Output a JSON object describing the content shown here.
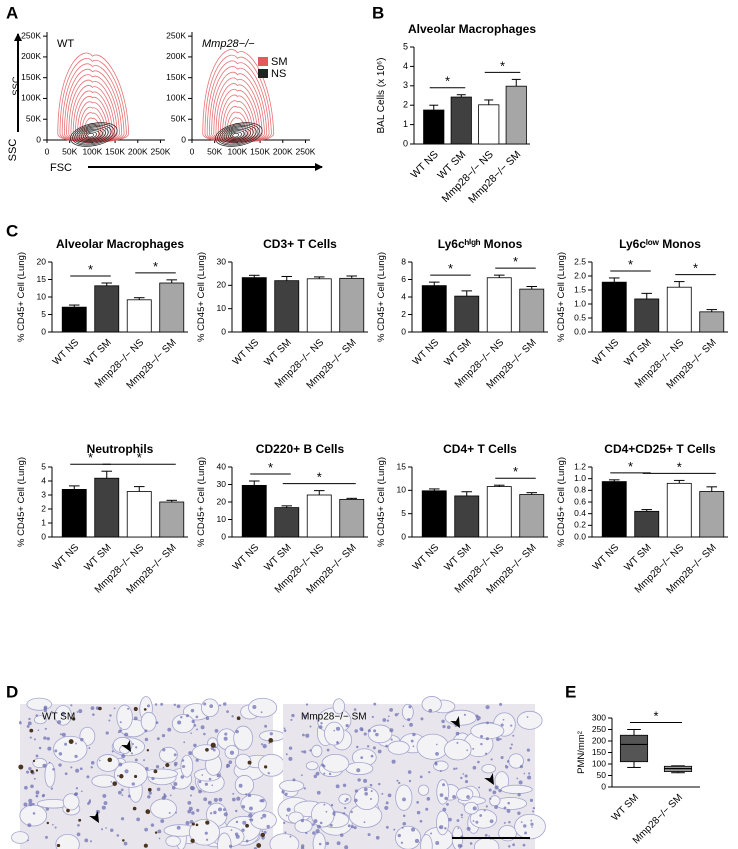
{
  "panel_labels": [
    "A",
    "B",
    "C",
    "D",
    "E"
  ],
  "micrographs": [
    {
      "label": "WT SM"
    },
    {
      "label": "Mmp28−/− SM"
    }
  ],
  "chart_data": [
    {
      "type": "contour",
      "title": "WT",
      "x_label": "FSC",
      "y_label": "SSC",
      "xlim": [
        0,
        260000
      ],
      "ylim": [
        0,
        260000
      ],
      "xticks": [
        0,
        {
          "value": 50000,
          "label": "50K"
        },
        {
          "value": 100000,
          "label": "100K"
        },
        {
          "value": 150000,
          "label": "150K"
        },
        {
          "value": 200000,
          "label": "200K"
        },
        {
          "value": 250000,
          "label": "250K"
        }
      ],
      "yticks": [
        0,
        {
          "value": 50000,
          "label": "50K"
        },
        {
          "value": 100000,
          "label": "100K"
        },
        {
          "value": 150000,
          "label": "150K"
        },
        {
          "value": 200000,
          "label": "200K"
        },
        {
          "value": 250000,
          "label": "250K"
        }
      ],
      "series": [
        {
          "color": "#e05a5e"
        },
        {
          "color": "#222222"
        }
      ]
    },
    {
      "type": "contour",
      "title": "Mmp28−/−",
      "xlim": [
        0,
        260000
      ],
      "ylim": [
        0,
        260000
      ],
      "xticks": [
        0,
        {
          "value": 50000,
          "label": "50K"
        },
        {
          "value": 100000,
          "label": "100K"
        },
        {
          "value": 150000,
          "label": "150K"
        },
        {
          "value": 200000,
          "label": "200K"
        },
        {
          "value": 250000,
          "label": "250K"
        }
      ],
      "yticks": [
        0,
        {
          "value": 50000,
          "label": "50K"
        },
        {
          "value": 100000,
          "label": "100K"
        },
        {
          "value": 150000,
          "label": "150K"
        },
        {
          "value": 200000,
          "label": "200K"
        },
        {
          "value": 250000,
          "label": "250K"
        }
      ],
      "series": [
        {
          "name": "SM",
          "color": "#e05a5e"
        },
        {
          "name": "NS",
          "color": "#222222"
        }
      ]
    },
    {
      "type": "bar",
      "title": "Alveolar Macrophages",
      "y_label": "BAL Cells (x 10⁶)",
      "categories": [
        "WT NS",
        "WT SM",
        "Mmp28−/− NS",
        "Mmp28−/− SM"
      ],
      "values": [
        1.75,
        2.42,
        2.02,
        2.98
      ],
      "errors": [
        0.25,
        0.12,
        0.25,
        0.35
      ],
      "colors": [
        "#000000",
        "#404040",
        "#ffffff",
        "#a6a6a6"
      ],
      "ylim": [
        0,
        5
      ],
      "yticks": [
        0,
        1,
        2,
        3,
        4,
        5
      ],
      "significance": [
        {
          "label": "*",
          "between": [
            "WT NS",
            "WT SM"
          ]
        },
        {
          "label": "*",
          "between": [
            "Mmp28−/− NS",
            "Mmp28−/− SM"
          ]
        }
      ]
    },
    {
      "type": "bar",
      "title": "Alveolar Macrophages",
      "y_label": "% CD45+ Cell (Lung)",
      "categories": [
        "WT NS",
        "WT SM",
        "Mmp28−/− NS",
        "Mmp28−/− SM"
      ],
      "values": [
        7.1,
        13.2,
        9.2,
        14.0
      ],
      "errors": [
        0.6,
        0.8,
        0.6,
        0.9
      ],
      "colors": [
        "#000000",
        "#404040",
        "#ffffff",
        "#a6a6a6"
      ],
      "ylim": [
        0,
        20
      ],
      "yticks": [
        0,
        5,
        10,
        15,
        20
      ],
      "significance": [
        {
          "label": "*",
          "between": [
            "WT NS",
            "WT SM"
          ]
        },
        {
          "label": "*",
          "between": [
            "Mmp28−/− NS",
            "Mmp28−/− SM"
          ]
        }
      ]
    },
    {
      "type": "bar",
      "title": "CD3+ T Cells",
      "y_label": "% CD45+ Cell (Lung)",
      "categories": [
        "WT NS",
        "WT SM",
        "Mmp28−/− NS",
        "Mmp28−/− SM"
      ],
      "values": [
        23.3,
        22.0,
        22.8,
        23.0
      ],
      "errors": [
        1.0,
        1.8,
        0.8,
        1.0
      ],
      "colors": [
        "#000000",
        "#404040",
        "#ffffff",
        "#a6a6a6"
      ],
      "ylim": [
        0,
        30
      ],
      "yticks": [
        0,
        10,
        20,
        30
      ],
      "significance": []
    },
    {
      "type": "bar",
      "title": "Ly6cʰⁱᵍʰ Monos",
      "y_label": "% CD45+ Cell (Lung)",
      "categories": [
        "WT NS",
        "WT SM",
        "Mmp28−/− NS",
        "Mmp28−/− SM"
      ],
      "values": [
        5.3,
        4.1,
        6.2,
        4.9
      ],
      "errors": [
        0.4,
        0.6,
        0.3,
        0.3
      ],
      "colors": [
        "#000000",
        "#404040",
        "#ffffff",
        "#a6a6a6"
      ],
      "ylim": [
        0,
        8
      ],
      "yticks": [
        0,
        2,
        4,
        6,
        8
      ],
      "significance": [
        {
          "label": "*",
          "between": [
            "WT NS",
            "WT SM"
          ]
        },
        {
          "label": "*",
          "between": [
            "Mmp28−/− NS",
            "Mmp28−/− SM"
          ]
        }
      ]
    },
    {
      "type": "bar",
      "title": "Ly6cˡᵒʷ Monos",
      "y_label": "% CD45+ Cell (Lung)",
      "categories": [
        "WT NS",
        "WT SM",
        "Mmp28−/− NS",
        "Mmp28−/− SM"
      ],
      "values": [
        1.78,
        1.18,
        1.6,
        0.72
      ],
      "errors": [
        0.15,
        0.2,
        0.2,
        0.08
      ],
      "colors": [
        "#000000",
        "#404040",
        "#ffffff",
        "#a6a6a6"
      ],
      "ylim": [
        0,
        2.5
      ],
      "yticks": [
        {
          "value": 0,
          "label": "0.0"
        },
        0.5,
        {
          "value": 1,
          "label": "1.0"
        },
        1.5,
        {
          "value": 2,
          "label": "2.0"
        },
        2.5
      ],
      "significance": [
        {
          "label": "*",
          "between": [
            "WT NS",
            "WT SM"
          ]
        },
        {
          "label": "*",
          "between": [
            "Mmp28−/− NS",
            "Mmp28−/− SM"
          ]
        }
      ]
    },
    {
      "type": "bar",
      "title": "Neutrophils",
      "y_label": "% CD45+ Cell (Lung)",
      "categories": [
        "WT NS",
        "WT SM",
        "Mmp28−/− NS",
        "Mmp28−/− SM"
      ],
      "values": [
        3.4,
        4.2,
        3.25,
        2.5
      ],
      "errors": [
        0.25,
        0.5,
        0.35,
        0.12
      ],
      "colors": [
        "#000000",
        "#404040",
        "#ffffff",
        "#a6a6a6"
      ],
      "ylim": [
        0,
        5
      ],
      "yticks": [
        0,
        1,
        2,
        3,
        4,
        5
      ],
      "significance": [
        {
          "label": "*",
          "between": [
            "WT NS",
            "WT SM"
          ]
        },
        {
          "label": "*",
          "between": [
            "WT SM",
            "Mmp28−/− SM"
          ]
        }
      ]
    },
    {
      "type": "bar",
      "title": "CD220+ B Cells",
      "y_label": "% CD45+ Cell (Lung)",
      "categories": [
        "WT NS",
        "WT SM",
        "Mmp28−/− NS",
        "Mmp28−/− SM"
      ],
      "values": [
        29.5,
        16.8,
        24,
        21.5
      ],
      "errors": [
        2.5,
        1.0,
        2.5,
        0.6
      ],
      "colors": [
        "#000000",
        "#404040",
        "#ffffff",
        "#a6a6a6"
      ],
      "ylim": [
        0,
        40
      ],
      "yticks": [
        0,
        10,
        20,
        30,
        40
      ],
      "significance": [
        {
          "label": "*",
          "between": [
            "WT NS",
            "WT SM"
          ]
        },
        {
          "label": "*",
          "between": [
            "WT SM",
            "Mmp28−/− SM"
          ]
        }
      ]
    },
    {
      "type": "bar",
      "title": "CD4+ T Cells",
      "y_label": "% CD45+ Cell (Lung)",
      "categories": [
        "WT NS",
        "WT SM",
        "Mmp28−/− NS",
        "Mmp28−/− SM"
      ],
      "values": [
        9.9,
        8.8,
        10.8,
        9.1
      ],
      "errors": [
        0.4,
        0.9,
        0.3,
        0.4
      ],
      "colors": [
        "#000000",
        "#404040",
        "#ffffff",
        "#a6a6a6"
      ],
      "ylim": [
        0,
        15
      ],
      "yticks": [
        0,
        5,
        10,
        15
      ],
      "significance": [
        {
          "label": "*",
          "between": [
            "Mmp28−/− NS",
            "Mmp28−/− SM"
          ]
        }
      ]
    },
    {
      "type": "bar",
      "title": "CD4+CD25+ T Cells",
      "y_label": "% CD45+ Cell (Lung)",
      "categories": [
        "WT NS",
        "WT SM",
        "Mmp28−/− NS",
        "Mmp28−/− SM"
      ],
      "values": [
        0.95,
        0.44,
        0.92,
        0.78
      ],
      "errors": [
        0.03,
        0.03,
        0.05,
        0.08
      ],
      "colors": [
        "#000000",
        "#404040",
        "#ffffff",
        "#a6a6a6"
      ],
      "ylim": [
        0,
        1.2
      ],
      "yticks": [
        {
          "value": 0,
          "label": "0.0"
        },
        0.2,
        0.4,
        0.6,
        0.8,
        {
          "value": 1,
          "label": "1.0"
        },
        1.2
      ],
      "significance": [
        {
          "label": "*",
          "between": [
            "WT NS",
            "WT SM"
          ]
        },
        {
          "label": "*",
          "between": [
            "WT SM",
            "Mmp28−/− SM"
          ]
        }
      ]
    },
    {
      "type": "box",
      "y_label": "PMN/mm²",
      "categories": [
        "WT SM",
        "Mmp28−/− SM"
      ],
      "boxes": [
        {
          "min": 85,
          "q1": 110,
          "median": 185,
          "q3": 225,
          "max": 250,
          "color": "#555555"
        },
        {
          "min": 62,
          "q1": 67,
          "median": 80,
          "q3": 90,
          "max": 92,
          "color": "#9a9a9a"
        }
      ],
      "ylim": [
        0,
        300
      ],
      "yticks": [
        0,
        50,
        100,
        150,
        200,
        250,
        300
      ],
      "significance": [
        {
          "label": "*",
          "between": [
            "WT SM",
            "Mmp28−/− SM"
          ]
        }
      ]
    }
  ]
}
